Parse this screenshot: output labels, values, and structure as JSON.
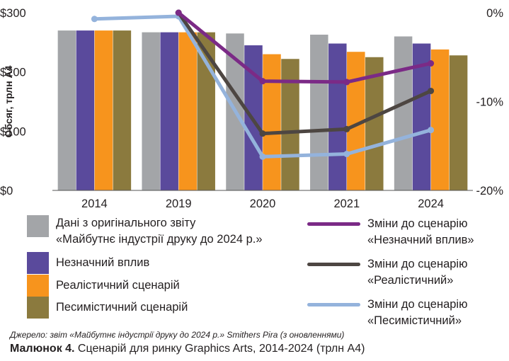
{
  "chart_data": {
    "type": "bar",
    "categories": [
      "2014",
      "2019",
      "2020",
      "2021",
      "2024"
    ],
    "ylabel": "Обсяг, трлн А4",
    "ylim": [
      0,
      300
    ],
    "y_ticks": [
      "$0",
      "$100",
      "$200",
      "$300"
    ],
    "y2lim": [
      -20,
      0
    ],
    "y2_ticks": [
      "0%",
      "-10%",
      "-20%"
    ],
    "series": [
      {
        "name": "Дані з оригінального звіту «Майбутнє індустрії друку до 2024 р.»",
        "type": "bar",
        "axis": "left",
        "color": "#a3a5a8",
        "values": [
          270,
          267,
          265,
          263,
          260
        ]
      },
      {
        "name": "Незначний вплив",
        "type": "bar",
        "axis": "left",
        "color": "#5a4a9c",
        "values": [
          270,
          267,
          245,
          248,
          248
        ]
      },
      {
        "name": "Реалістичний сценарій",
        "type": "bar",
        "axis": "left",
        "color": "#f7941d",
        "values": [
          270,
          267,
          230,
          234,
          238
        ]
      },
      {
        "name": "Песимістичний сценарій",
        "type": "bar",
        "axis": "left",
        "color": "#8b7a3e",
        "values": [
          270,
          267,
          222,
          225,
          228
        ]
      },
      {
        "name": "Зміни до сценарію «Незначний вплив»",
        "type": "line",
        "axis": "right",
        "color": "#7b2a86",
        "values": [
          null,
          0,
          -7.7,
          -7.8,
          -5.7
        ]
      },
      {
        "name": "Зміни до сценарію «Реалістичний»",
        "type": "line",
        "axis": "right",
        "color": "#4d4642",
        "values": [
          null,
          0,
          -13.6,
          -13.1,
          -8.8
        ]
      },
      {
        "name": "Зміни до сценарію «Песимістичний»",
        "type": "line",
        "axis": "right",
        "color": "#94b3dc",
        "values": [
          -0.7,
          -0.4,
          -16.2,
          -15.9,
          -13.2
        ]
      }
    ]
  },
  "legend": {
    "items": [
      {
        "lines": [
          "Дані з оригінального звіту",
          "«Майбутнє індустрії друку до 2024 р.»"
        ],
        "color": "#a3a5a8"
      },
      {
        "lines": [
          "Незначний вплив"
        ],
        "color": "#5a4a9c"
      },
      {
        "lines": [
          "Реалістичний сценарій"
        ],
        "color": "#f7941d"
      },
      {
        "lines": [
          "Песимістичний сценарій"
        ],
        "color": "#8b7a3e"
      }
    ],
    "line_items": [
      {
        "lines": [
          "Зміни до сценарію",
          "«Незначний вплив»"
        ],
        "color": "#7b2a86"
      },
      {
        "lines": [
          "Зміни до сценарію",
          "«Реалістичний»"
        ],
        "color": "#4d4642"
      },
      {
        "lines": [
          "Зміни до сценарію",
          "«Песимістичний»"
        ],
        "color": "#94b3dc"
      }
    ]
  },
  "source": "Джерело: звіт «Майбутнє індустрії друку до 2024 р.» Smithers Pira (з оновленнями)",
  "caption": {
    "label": "Малюнок 4.",
    "text": " Сценарій для ринку Graphics Arts, 2014-2024 (трлн А4)"
  }
}
